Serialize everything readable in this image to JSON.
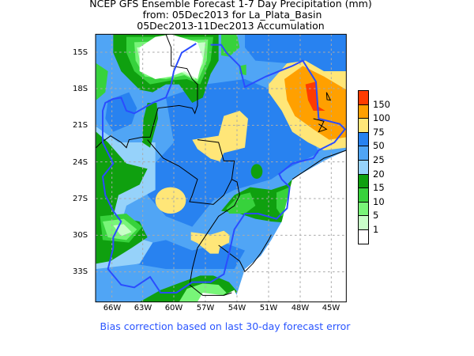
{
  "title": {
    "line1": "NCEP GFS Ensemble Forecast 1-7 Day Precipitation (mm)",
    "line2": "from: 05Dec2013   for La_Plata_Basin",
    "line3": "05Dec2013-11Dec2013 Accumulation"
  },
  "map": {
    "lat_labels": [
      "15S",
      "18S",
      "21S",
      "24S",
      "27S",
      "30S",
      "33S"
    ],
    "lon_labels": [
      "66W",
      "63W",
      "60W",
      "57W",
      "54W",
      "51W",
      "48W",
      "45W"
    ]
  },
  "legend": {
    "units": "mm",
    "levels": [
      {
        "label": "150",
        "color": "#ff3c00"
      },
      {
        "label": "100",
        "color": "#ffa000"
      },
      {
        "label": "75",
        "color": "#ffe678"
      },
      {
        "label": "50",
        "color": "#2882f0"
      },
      {
        "label": "25",
        "color": "#50a5f5"
      },
      {
        "label": "20",
        "color": "#96d2fa"
      },
      {
        "label": "15",
        "color": "#0fa00f"
      },
      {
        "label": "10",
        "color": "#37d23c"
      },
      {
        "label": "5",
        "color": "#78f578"
      },
      {
        "label": "1",
        "color": "#c8ffc8"
      },
      {
        "label": "",
        "color": "#ffffff"
      }
    ]
  },
  "footer": "Bias correction based on last 30-day forecast error"
}
